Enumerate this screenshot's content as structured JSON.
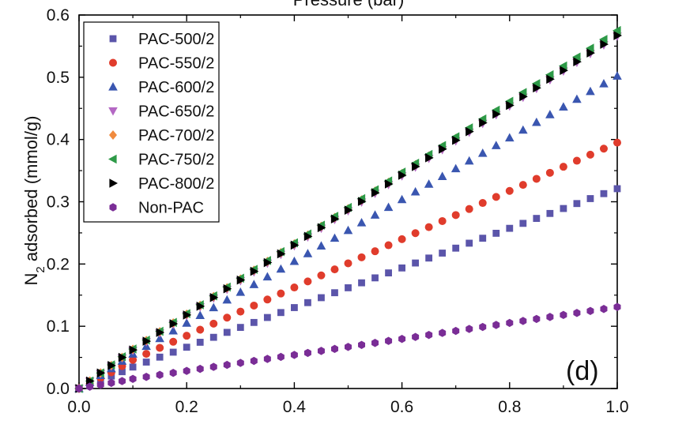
{
  "chart_data": {
    "type": "scatter",
    "title": "",
    "xlabel": "",
    "top_label": "Pressure (bar)",
    "ylabel": "N2 adsorbed (mmol/g)",
    "ylabel_parts": {
      "main": "N",
      "sub": "2",
      "rest": " adsorbed (mmol/g)"
    },
    "panel_label": "(d)",
    "xlim": [
      0,
      1.0
    ],
    "ylim": [
      0,
      0.6
    ],
    "xticks": [
      "0.0",
      "0.2",
      "0.4",
      "0.6",
      "0.8",
      "1.0"
    ],
    "yticks": [
      "0.0",
      "0.1",
      "0.2",
      "0.3",
      "0.4",
      "0.5",
      "0.6"
    ],
    "xtick_values": [
      0,
      0.2,
      0.4,
      0.6,
      0.8,
      1.0
    ],
    "ytick_values": [
      0,
      0.1,
      0.2,
      0.3,
      0.4,
      0.5,
      0.6
    ],
    "grid": false,
    "legend_position": "top-left",
    "series": [
      {
        "name": "PAC-500/2",
        "marker": "square",
        "color": "#5b55aa",
        "x_start": 0.1,
        "x_end": 1.0,
        "x_step": 0.025,
        "y_start": 0.0345,
        "y_end": 0.321,
        "low_pressure": [
          [
            0.0,
            0.0
          ],
          [
            0.02,
            0.006
          ],
          [
            0.04,
            0.013
          ],
          [
            0.06,
            0.02
          ],
          [
            0.08,
            0.027
          ]
        ]
      },
      {
        "name": "PAC-550/2",
        "marker": "circle",
        "color": "#e03c2c",
        "x_start": 0.1,
        "x_end": 1.0,
        "x_step": 0.025,
        "y_start": 0.046,
        "y_end": 0.395,
        "low_pressure": [
          [
            0.0,
            0.0
          ],
          [
            0.02,
            0.008
          ],
          [
            0.04,
            0.017
          ],
          [
            0.06,
            0.026
          ],
          [
            0.08,
            0.036
          ]
        ]
      },
      {
        "name": "PAC-600/2",
        "marker": "triangle-up",
        "color": "#3a56b0",
        "x_start": 0.1,
        "x_end": 1.0,
        "x_step": 0.025,
        "y_start": 0.0555,
        "y_end": 0.502,
        "low_pressure": [
          [
            0.0,
            0.0
          ],
          [
            0.02,
            0.01
          ],
          [
            0.04,
            0.021
          ],
          [
            0.06,
            0.032
          ],
          [
            0.08,
            0.044
          ]
        ]
      },
      {
        "name": "PAC-650/2",
        "marker": "triangle-down",
        "color": "#b468c4",
        "x_start": 0.1,
        "x_end": 1.0,
        "x_step": 0.025,
        "y_start": 0.061,
        "y_end": 0.566,
        "low_pressure": [
          [
            0.0,
            0.0
          ],
          [
            0.02,
            0.012
          ],
          [
            0.04,
            0.024
          ],
          [
            0.06,
            0.036
          ],
          [
            0.08,
            0.049
          ]
        ]
      },
      {
        "name": "PAC-700/2",
        "marker": "diamond",
        "color": "#f08a3e",
        "x_start": 0.1,
        "x_end": 1.0,
        "x_step": 0.025,
        "y_start": 0.063,
        "y_end": 0.571,
        "low_pressure": [
          [
            0.0,
            0.0
          ],
          [
            0.02,
            0.012
          ],
          [
            0.04,
            0.025
          ],
          [
            0.06,
            0.037
          ],
          [
            0.08,
            0.05
          ]
        ]
      },
      {
        "name": "PAC-750/2",
        "marker": "triangle-left",
        "color": "#2e9a48",
        "x_start": 0.1,
        "x_end": 1.0,
        "x_step": 0.025,
        "y_start": 0.0635,
        "y_end": 0.575,
        "low_pressure": [
          [
            0.0,
            0.0
          ],
          [
            0.02,
            0.012
          ],
          [
            0.04,
            0.025
          ],
          [
            0.06,
            0.038
          ],
          [
            0.08,
            0.051
          ]
        ]
      },
      {
        "name": "PAC-800/2",
        "marker": "triangle-right",
        "color": "#000000",
        "x_start": 0.1,
        "x_end": 1.0,
        "x_step": 0.025,
        "y_start": 0.062,
        "y_end": 0.567,
        "low_pressure": [
          [
            0.0,
            0.0
          ],
          [
            0.02,
            0.012
          ],
          [
            0.04,
            0.025
          ],
          [
            0.06,
            0.037
          ],
          [
            0.08,
            0.05
          ]
        ]
      },
      {
        "name": "Non-PAC",
        "marker": "hexagon",
        "color": "#7a2d96",
        "x_start": 0.1,
        "x_end": 1.0,
        "x_step": 0.025,
        "y_start": 0.0155,
        "y_end": 0.131,
        "low_pressure": [
          [
            0.0,
            0.0
          ],
          [
            0.02,
            0.003
          ],
          [
            0.04,
            0.006
          ],
          [
            0.06,
            0.009
          ],
          [
            0.08,
            0.012
          ]
        ]
      }
    ]
  }
}
